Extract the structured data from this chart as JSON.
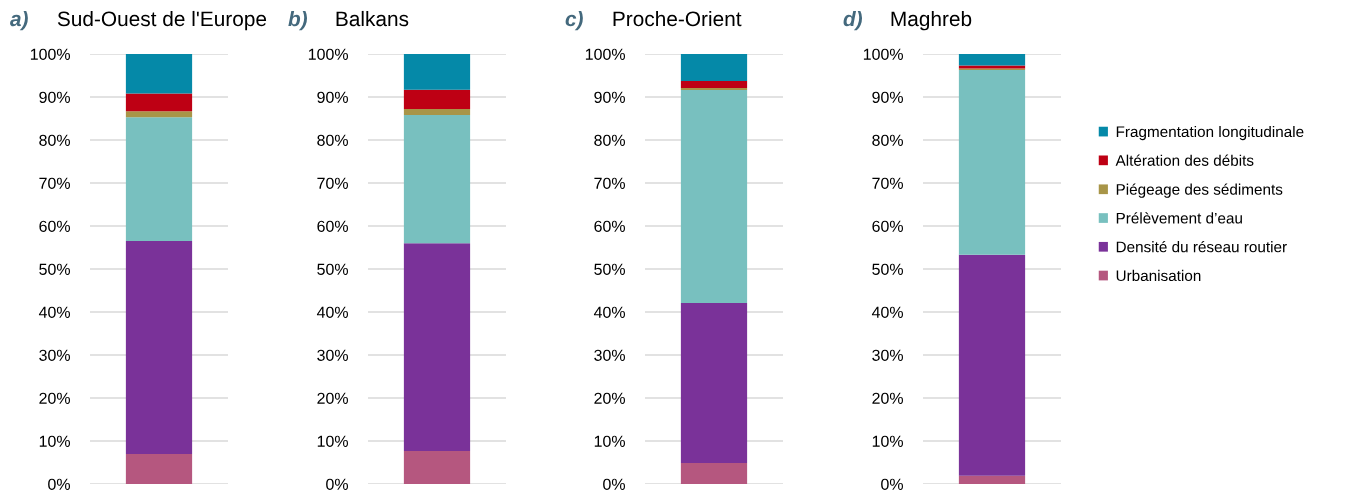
{
  "chart_data": [
    {
      "type": "bar",
      "stacked": true,
      "title": "Sud-Ouest de l'Europe",
      "annotations": [
        "a)"
      ],
      "categories": [
        null
      ],
      "ylim": [
        0,
        100
      ],
      "yticks": [
        {
          "value": 0,
          "label": "0%"
        },
        {
          "value": 10,
          "label": "10%"
        },
        {
          "value": 20,
          "label": "20%"
        },
        {
          "value": 30,
          "label": "30%"
        },
        {
          "value": 40,
          "label": "40%"
        },
        {
          "value": 50,
          "label": "50%"
        },
        {
          "value": 60,
          "label": "60%"
        },
        {
          "value": 70,
          "label": "70%"
        },
        {
          "value": 80,
          "label": "80%"
        },
        {
          "value": 90,
          "label": "90%"
        },
        {
          "value": 100,
          "label": "100%"
        }
      ],
      "grid": "y",
      "tick_labels": "y",
      "legend": "right",
      "series": [
        {
          "name": "Urbanisation",
          "color": "#b5577f",
          "values": [
            7.0
          ]
        },
        {
          "name": "Densité du réseau routier",
          "color": "#7a3299",
          "values": [
            49.5
          ]
        },
        {
          "name": "Prélèvement d’eau",
          "color": "#78c0bf",
          "values": [
            28.8
          ]
        },
        {
          "name": "Piégeage des sédiments",
          "color": "#a89548",
          "values": [
            1.4
          ]
        },
        {
          "name": "Altération des débits",
          "color": "#be0014",
          "values": [
            4.1
          ]
        },
        {
          "name": "Fragmentation longitudinale",
          "color": "#0589a8",
          "values": [
            9.2
          ]
        }
      ]
    },
    {
      "type": "bar",
      "stacked": true,
      "title": "Balkans",
      "annotations": [
        "b)"
      ],
      "categories": [
        null
      ],
      "ylim": [
        0,
        100
      ],
      "yticks": [
        {
          "value": 0,
          "label": "0%"
        },
        {
          "value": 10,
          "label": "10%"
        },
        {
          "value": 20,
          "label": "20%"
        },
        {
          "value": 30,
          "label": "30%"
        },
        {
          "value": 40,
          "label": "40%"
        },
        {
          "value": 50,
          "label": "50%"
        },
        {
          "value": 60,
          "label": "60%"
        },
        {
          "value": 70,
          "label": "70%"
        },
        {
          "value": 80,
          "label": "80%"
        },
        {
          "value": 90,
          "label": "90%"
        },
        {
          "value": 100,
          "label": "100%"
        }
      ],
      "grid": "y",
      "tick_labels": "y",
      "series": [
        {
          "color": "#b5577f",
          "values": [
            7.7
          ]
        },
        {
          "color": "#7a3299",
          "values": [
            48.3
          ]
        },
        {
          "color": "#78c0bf",
          "values": [
            29.8
          ]
        },
        {
          "color": "#a89548",
          "values": [
            1.4
          ]
        },
        {
          "color": "#be0014",
          "values": [
            4.5
          ]
        },
        {
          "color": "#0589a8",
          "values": [
            8.3
          ]
        }
      ]
    },
    {
      "type": "bar",
      "stacked": true,
      "title": "Proche-Orient",
      "annotations": [
        "c)"
      ],
      "categories": [
        null
      ],
      "ylim": [
        0,
        100
      ],
      "yticks": [
        {
          "value": 0,
          "label": "0%"
        },
        {
          "value": 10,
          "label": "10%"
        },
        {
          "value": 20,
          "label": "20%"
        },
        {
          "value": 30,
          "label": "30%"
        },
        {
          "value": 40,
          "label": "40%"
        },
        {
          "value": 50,
          "label": "50%"
        },
        {
          "value": 60,
          "label": "60%"
        },
        {
          "value": 70,
          "label": "70%"
        },
        {
          "value": 80,
          "label": "80%"
        },
        {
          "value": 90,
          "label": "90%"
        },
        {
          "value": 100,
          "label": "100%"
        }
      ],
      "grid": "y",
      "tick_labels": "y",
      "series": [
        {
          "color": "#b5577f",
          "values": [
            4.9
          ]
        },
        {
          "color": "#7a3299",
          "values": [
            37.2
          ]
        },
        {
          "color": "#78c0bf",
          "values": [
            49.5
          ]
        },
        {
          "color": "#a89548",
          "values": [
            0.5
          ]
        },
        {
          "color": "#be0014",
          "values": [
            1.6
          ]
        },
        {
          "color": "#0589a8",
          "values": [
            6.3
          ]
        }
      ]
    },
    {
      "type": "bar",
      "stacked": true,
      "title": "Maghreb",
      "annotations": [
        "d)"
      ],
      "categories": [
        null
      ],
      "ylim": [
        0,
        100
      ],
      "yticks": [
        {
          "value": 0,
          "label": "0%"
        },
        {
          "value": 10,
          "label": "10%"
        },
        {
          "value": 20,
          "label": "20%"
        },
        {
          "value": 30,
          "label": "30%"
        },
        {
          "value": 40,
          "label": "40%"
        },
        {
          "value": 50,
          "label": "50%"
        },
        {
          "value": 60,
          "label": "60%"
        },
        {
          "value": 70,
          "label": "70%"
        },
        {
          "value": 80,
          "label": "80%"
        },
        {
          "value": 90,
          "label": "90%"
        },
        {
          "value": 100,
          "label": "100%"
        }
      ],
      "grid": "y",
      "tick_labels": "y",
      "series": [
        {
          "color": "#b5577f",
          "values": [
            1.9
          ]
        },
        {
          "color": "#7a3299",
          "values": [
            51.4
          ]
        },
        {
          "color": "#78c0bf",
          "values": [
            43.0
          ]
        },
        {
          "color": "#a89548",
          "values": [
            0.3
          ]
        },
        {
          "color": "#be0014",
          "values": [
            0.7
          ]
        },
        {
          "color": "#0589a8",
          "values": [
            2.7
          ]
        }
      ]
    }
  ]
}
